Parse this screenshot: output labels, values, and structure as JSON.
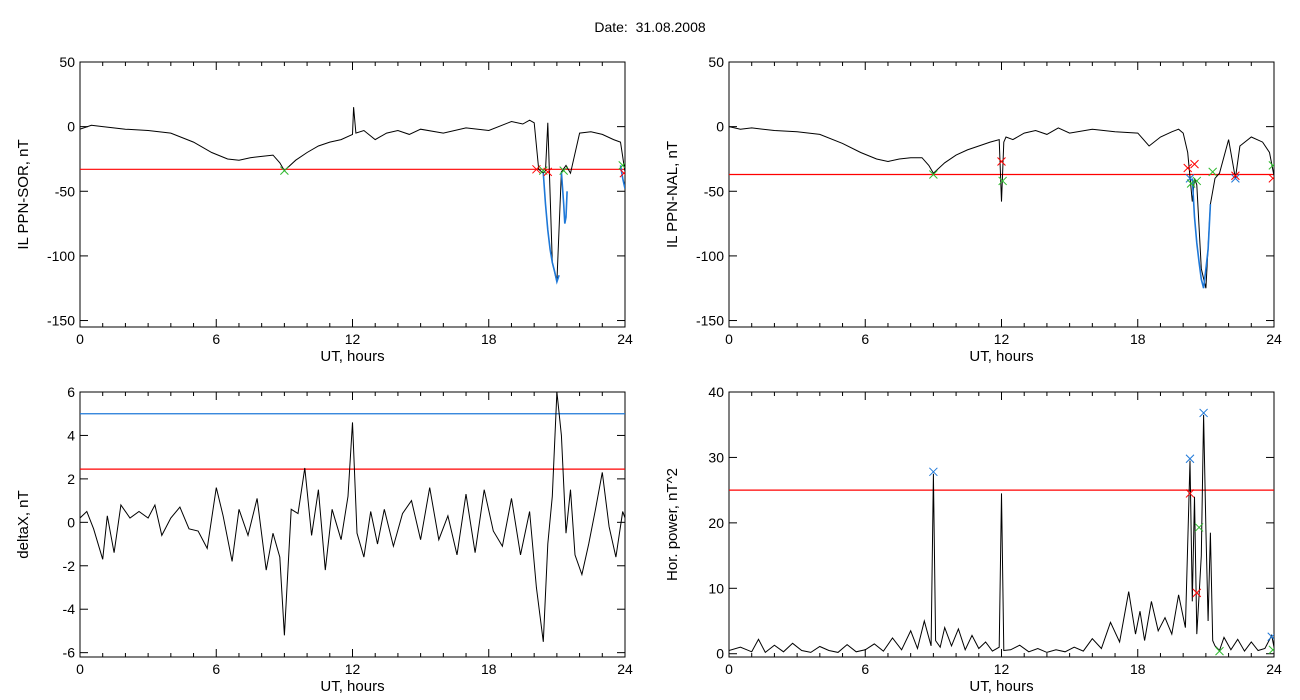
{
  "header": {
    "label": "Date:",
    "value": "31.08.2008"
  },
  "colors": {
    "trace": "#000000",
    "threshold_red": "#ff0000",
    "threshold_blue": "#1e78d8",
    "marker_red": "#ff0000",
    "marker_green": "#2db82d",
    "marker_blue": "#1e78d8",
    "event_blue": "#1e78d8"
  },
  "chart_data": [
    {
      "id": "p1",
      "type": "line",
      "ylabel": "IL PPN-SOR, nT",
      "xlabel": "UT, hours",
      "xlim": [
        0,
        24
      ],
      "ylim": [
        -155,
        50
      ],
      "xticks": [
        "0",
        "6",
        "12",
        "18",
        "24"
      ],
      "yticks": [
        "50",
        "0",
        "-50",
        "-100",
        "-150"
      ],
      "ytick_values": [
        50,
        0,
        -50,
        -100,
        -150
      ],
      "grid": false,
      "threshold": {
        "color": "red",
        "value": -33
      },
      "series": [
        {
          "color": "black",
          "x": [
            0,
            0.5,
            1,
            2,
            3,
            4,
            5,
            5.8,
            6.5,
            7,
            7.5,
            8,
            8.5,
            8.8,
            9,
            9.5,
            10,
            10.5,
            11,
            11.5,
            12,
            12.05,
            12.15,
            12.5,
            13,
            13.5,
            14,
            14.5,
            15,
            16,
            17,
            18,
            19,
            19.5,
            19.8,
            20,
            20.2,
            20.4,
            20.5,
            20.6,
            20.8,
            21,
            21.2,
            21.4,
            21.6,
            22,
            22.5,
            23,
            23.5,
            23.8,
            24
          ],
          "y": [
            -2,
            1,
            0,
            -2,
            -3,
            -5,
            -12,
            -20,
            -25,
            -26,
            -24,
            -23,
            -22,
            -28,
            -34,
            -26,
            -20,
            -15,
            -12,
            -10,
            -6,
            15,
            -5,
            -3,
            -10,
            -5,
            -3,
            -6,
            -2,
            -5,
            -1,
            -3,
            4,
            2,
            5,
            3,
            -33,
            -36,
            -34,
            3,
            -105,
            -120,
            -35,
            -30,
            -36,
            -5,
            -4,
            -6,
            -10,
            -12,
            -35
          ]
        }
      ],
      "events": [
        {
          "x": [
            20.4,
            20.5,
            20.6,
            20.7,
            20.8,
            20.9,
            21.0,
            21.1
          ],
          "y": [
            -36,
            -60,
            -80,
            -95,
            -105,
            -112,
            -120,
            -115
          ]
        },
        {
          "x": [
            21.2,
            21.3,
            21.35,
            21.4,
            21.45
          ],
          "y": [
            -35,
            -60,
            -75,
            -70,
            -50
          ]
        },
        {
          "x": [
            23.8,
            23.9,
            24.0
          ],
          "y": [
            -30,
            -40,
            -48
          ]
        }
      ],
      "markers": [
        {
          "color": "green",
          "x": 9.0,
          "y": -34
        },
        {
          "color": "red",
          "x": 20.1,
          "y": -33
        },
        {
          "color": "green",
          "x": 20.4,
          "y": -34
        },
        {
          "color": "red",
          "x": 20.6,
          "y": -35
        },
        {
          "color": "green",
          "x": 21.3,
          "y": -34
        },
        {
          "color": "green",
          "x": 23.9,
          "y": -30
        },
        {
          "color": "red",
          "x": 23.95,
          "y": -36
        }
      ]
    },
    {
      "id": "p2",
      "type": "line",
      "ylabel": "IL PPN-NAL, nT",
      "xlabel": "UT, hours",
      "xlim": [
        0,
        24
      ],
      "ylim": [
        -155,
        50
      ],
      "xticks": [
        "0",
        "6",
        "12",
        "18",
        "24"
      ],
      "yticks": [
        "50",
        "0",
        "-50",
        "-100",
        "-150"
      ],
      "ytick_values": [
        50,
        0,
        -50,
        -100,
        -150
      ],
      "grid": false,
      "threshold": {
        "color": "red",
        "value": -37
      },
      "series": [
        {
          "color": "black",
          "x": [
            0,
            0.5,
            1,
            2,
            3,
            4,
            5,
            5.8,
            6.5,
            7,
            7.5,
            8,
            8.5,
            8.8,
            9,
            9.5,
            10,
            10.5,
            11,
            11.5,
            11.9,
            12,
            12.1,
            12.2,
            12.5,
            13,
            13.5,
            14,
            14.5,
            15,
            16,
            17,
            18,
            18.5,
            19,
            19.5,
            19.8,
            20,
            20.2,
            20.4,
            20.5,
            20.6,
            20.8,
            21,
            21.2,
            21.4,
            21.6,
            22,
            22.3,
            22.5,
            23,
            23.5,
            23.8,
            24
          ],
          "y": [
            0,
            -2,
            -1,
            -3,
            -4,
            -6,
            -13,
            -20,
            -25,
            -27,
            -25,
            -24,
            -24,
            -30,
            -36,
            -28,
            -22,
            -18,
            -15,
            -12,
            -10,
            -58,
            -12,
            -8,
            -10,
            -5,
            -3,
            -6,
            -1,
            -5,
            -2,
            -4,
            -5,
            -15,
            -8,
            -4,
            -2,
            -5,
            -20,
            -58,
            -40,
            -45,
            -110,
            -125,
            -60,
            -40,
            -36,
            -10,
            -40,
            -15,
            -8,
            -12,
            -20,
            -38
          ]
        }
      ],
      "events": [
        {
          "x": [
            20.4,
            20.5,
            20.6,
            20.7,
            20.8,
            20.9,
            21.0,
            21.1,
            21.2
          ],
          "y": [
            -40,
            -70,
            -90,
            -105,
            -118,
            -125,
            -110,
            -95,
            -60
          ]
        }
      ],
      "markers": [
        {
          "color": "green",
          "x": 9.0,
          "y": -37
        },
        {
          "color": "red",
          "x": 12.0,
          "y": -27
        },
        {
          "color": "green",
          "x": 12.05,
          "y": -42
        },
        {
          "color": "red",
          "x": 20.2,
          "y": -32
        },
        {
          "color": "blue",
          "x": 20.3,
          "y": -40
        },
        {
          "color": "green",
          "x": 20.35,
          "y": -44
        },
        {
          "color": "red",
          "x": 20.5,
          "y": -29
        },
        {
          "color": "green",
          "x": 20.6,
          "y": -42
        },
        {
          "color": "green",
          "x": 21.3,
          "y": -35
        },
        {
          "color": "blue",
          "x": 22.3,
          "y": -40
        },
        {
          "color": "red",
          "x": 22.3,
          "y": -38
        },
        {
          "color": "green",
          "x": 23.95,
          "y": -30
        },
        {
          "color": "red",
          "x": 23.95,
          "y": -40
        }
      ]
    },
    {
      "id": "p3",
      "type": "line",
      "ylabel": "deltaX, nT",
      "xlabel": "UT, hours",
      "xlim": [
        0,
        24
      ],
      "ylim": [
        -6.2,
        6
      ],
      "xticks": [
        "0",
        "6",
        "12",
        "18",
        "24"
      ],
      "yticks": [
        "6",
        "4",
        "2",
        "0",
        "-2",
        "-4",
        "-6"
      ],
      "ytick_values": [
        6,
        4,
        2,
        0,
        -2,
        -4,
        -6
      ],
      "grid": false,
      "thresholds": [
        {
          "color": "blue",
          "value": 5.0
        },
        {
          "color": "red",
          "value": 2.45
        }
      ],
      "series": [
        {
          "color": "black",
          "x": [
            0,
            0.3,
            0.6,
            1,
            1.2,
            1.5,
            1.8,
            2.2,
            2.6,
            3,
            3.3,
            3.6,
            4,
            4.4,
            4.8,
            5.2,
            5.6,
            6,
            6.3,
            6.7,
            7,
            7.4,
            7.8,
            8.2,
            8.5,
            8.8,
            9.0,
            9.3,
            9.6,
            9.9,
            10.2,
            10.5,
            10.8,
            11.1,
            11.5,
            11.8,
            12.0,
            12.2,
            12.5,
            12.8,
            13.1,
            13.4,
            13.8,
            14.2,
            14.6,
            15,
            15.4,
            15.8,
            16.2,
            16.6,
            17,
            17.4,
            17.8,
            18.2,
            18.6,
            19,
            19.4,
            19.8,
            20.1,
            20.4,
            20.6,
            20.8,
            21.0,
            21.2,
            21.4,
            21.6,
            21.8,
            22.1,
            22.4,
            22.7,
            23.0,
            23.3,
            23.6,
            23.9,
            24
          ],
          "y": [
            0.2,
            0.5,
            -0.3,
            -1.7,
            0.3,
            -1.4,
            0.8,
            0.2,
            0.5,
            0.2,
            0.8,
            -0.6,
            0.2,
            0.7,
            -0.3,
            -0.4,
            -1.2,
            1.6,
            0.3,
            -1.8,
            0.6,
            -0.6,
            1.1,
            -2.2,
            -0.5,
            -1.6,
            -5.2,
            0.6,
            0.4,
            2.5,
            -0.6,
            1.5,
            -2.2,
            0.6,
            -0.8,
            1.2,
            4.6,
            -0.5,
            -1.6,
            0.5,
            -1.0,
            0.6,
            -1.1,
            0.4,
            1.0,
            -0.8,
            1.6,
            -0.8,
            0.3,
            -1.5,
            1.3,
            -1.4,
            1.5,
            -0.4,
            -1.1,
            1.1,
            -1.5,
            0.5,
            -3.0,
            -5.5,
            -1.0,
            1.2,
            6.0,
            4.0,
            -0.5,
            1.5,
            -1.5,
            -2.4,
            -1.0,
            0.6,
            2.3,
            -0.2,
            -1.6,
            0.5,
            0.2
          ]
        }
      ]
    },
    {
      "id": "p4",
      "type": "line",
      "ylabel": "Hor. power, nT^2",
      "xlabel": "UT, hours",
      "xlim": [
        0,
        24
      ],
      "ylim": [
        -0.5,
        40
      ],
      "xticks": [
        "0",
        "6",
        "12",
        "18",
        "24"
      ],
      "yticks": [
        "40",
        "30",
        "20",
        "10",
        "0"
      ],
      "ytick_values": [
        40,
        30,
        20,
        10,
        0
      ],
      "grid": false,
      "threshold": {
        "color": "red",
        "value": 25
      },
      "series": [
        {
          "color": "black",
          "x": [
            0,
            0.5,
            1,
            1.3,
            1.6,
            2,
            2.4,
            2.8,
            3.2,
            3.6,
            4,
            4.4,
            4.8,
            5.2,
            5.6,
            6,
            6.4,
            6.8,
            7.2,
            7.6,
            8,
            8.3,
            8.6,
            8.9,
            9.0,
            9.1,
            9.3,
            9.5,
            9.8,
            10.1,
            10.4,
            10.7,
            11,
            11.3,
            11.6,
            11.9,
            12.0,
            12.1,
            12.4,
            12.8,
            13.2,
            13.6,
            14,
            14.4,
            14.8,
            15.2,
            15.6,
            16,
            16.4,
            16.8,
            17.2,
            17.6,
            17.9,
            18.1,
            18.3,
            18.6,
            18.9,
            19.2,
            19.5,
            19.8,
            20.1,
            20.3,
            20.4,
            20.5,
            20.6,
            20.7,
            20.8,
            20.9,
            21.0,
            21.1,
            21.2,
            21.3,
            21.4,
            21.6,
            21.8,
            22.1,
            22.4,
            22.7,
            23.0,
            23.3,
            23.6,
            23.9,
            24
          ],
          "y": [
            0.5,
            1.0,
            0.3,
            2.2,
            0.2,
            1.3,
            0.3,
            1.6,
            0.5,
            0.2,
            1.1,
            0.5,
            0.2,
            1.4,
            0.3,
            0.6,
            1.5,
            0.4,
            2.4,
            0.6,
            3.5,
            0.8,
            5.0,
            1.2,
            27.5,
            2.0,
            1.0,
            4.0,
            1.2,
            3.8,
            0.6,
            2.8,
            0.8,
            1.8,
            0.4,
            1.0,
            24.5,
            0.5,
            0.6,
            1.3,
            0.3,
            0.8,
            0.2,
            0.6,
            0.3,
            1.0,
            0.4,
            2.3,
            0.8,
            4.8,
            1.8,
            9.5,
            3.0,
            6.5,
            2.0,
            8.0,
            3.5,
            5.5,
            3.0,
            9.0,
            4.0,
            29.5,
            8.0,
            24.0,
            3.0,
            9.0,
            15.0,
            36.5,
            19.0,
            5.0,
            18.5,
            2.0,
            1.2,
            0.5,
            2.5,
            0.6,
            2.2,
            0.4,
            1.8,
            0.5,
            0.8,
            2.8,
            1.0
          ]
        }
      ],
      "markers": [
        {
          "color": "blue",
          "x": 9.0,
          "y": 27.8
        },
        {
          "color": "blue",
          "x": 20.3,
          "y": 29.8
        },
        {
          "color": "red",
          "x": 20.3,
          "y": 24.5
        },
        {
          "color": "red",
          "x": 20.6,
          "y": 9.3
        },
        {
          "color": "green",
          "x": 20.7,
          "y": 19.3
        },
        {
          "color": "blue",
          "x": 20.9,
          "y": 36.8
        },
        {
          "color": "green",
          "x": 21.6,
          "y": 0.4
        },
        {
          "color": "blue",
          "x": 23.9,
          "y": 2.6
        },
        {
          "color": "green",
          "x": 23.95,
          "y": 0.6
        }
      ]
    }
  ]
}
